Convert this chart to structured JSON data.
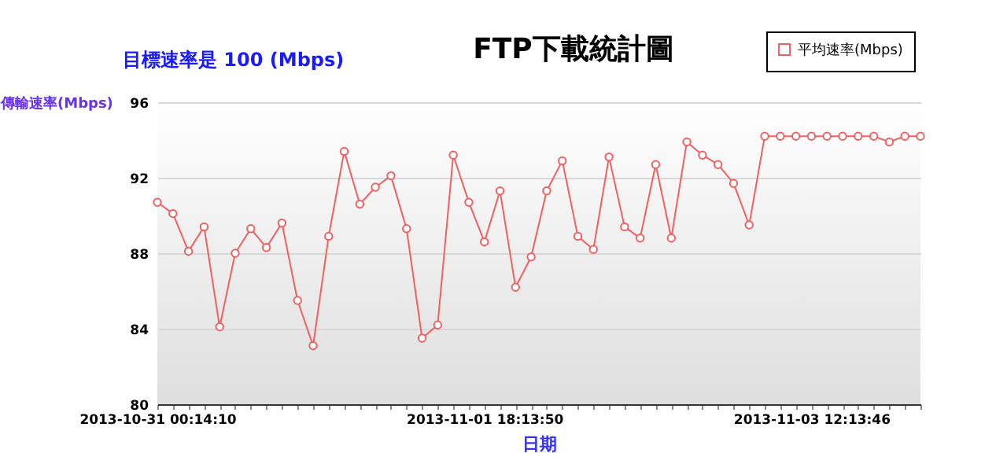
{
  "chart_data": {
    "type": "line",
    "title": "FTP下載統計圖",
    "xlabel": "日期",
    "ylabel": "傳輸速率(Mbps)",
    "annotations": [
      "目標速率是 100 (Mbps)"
    ],
    "categories": [
      "2013-10-31 00:14:10",
      null,
      null,
      null,
      null,
      null,
      null,
      null,
      null,
      null,
      null,
      null,
      null,
      null,
      null,
      null,
      null,
      null,
      null,
      null,
      null,
      "2013-11-01 18:13:50",
      null,
      null,
      null,
      null,
      null,
      null,
      null,
      null,
      null,
      null,
      null,
      null,
      null,
      null,
      null,
      null,
      null,
      null,
      null,
      null,
      "2013-11-03 12:13:46",
      null,
      null,
      null,
      null,
      null,
      null,
      null
    ],
    "series": [
      {
        "name": "平均速率(Mbps)",
        "color": "#f06060",
        "values": [
          90.7,
          90.1,
          88.1,
          89.4,
          84.1,
          88.0,
          89.3,
          88.3,
          89.6,
          85.5,
          83.1,
          88.9,
          93.4,
          90.6,
          91.5,
          92.1,
          89.3,
          83.5,
          84.2,
          93.2,
          90.7,
          88.6,
          91.3,
          86.2,
          87.8,
          91.3,
          92.9,
          88.9,
          88.2,
          93.1,
          89.4,
          88.8,
          92.7,
          88.8,
          93.9,
          93.2,
          92.7,
          91.7,
          89.5,
          94.2,
          94.2,
          94.2,
          94.2,
          94.2,
          94.2,
          94.2,
          94.2,
          93.9,
          94.2,
          94.2
        ]
      }
    ],
    "ylim": [
      80,
      96
    ],
    "yticks": [
      80,
      84,
      88,
      92,
      96
    ],
    "grid": "y",
    "legend": "top right",
    "marker": "circle"
  }
}
